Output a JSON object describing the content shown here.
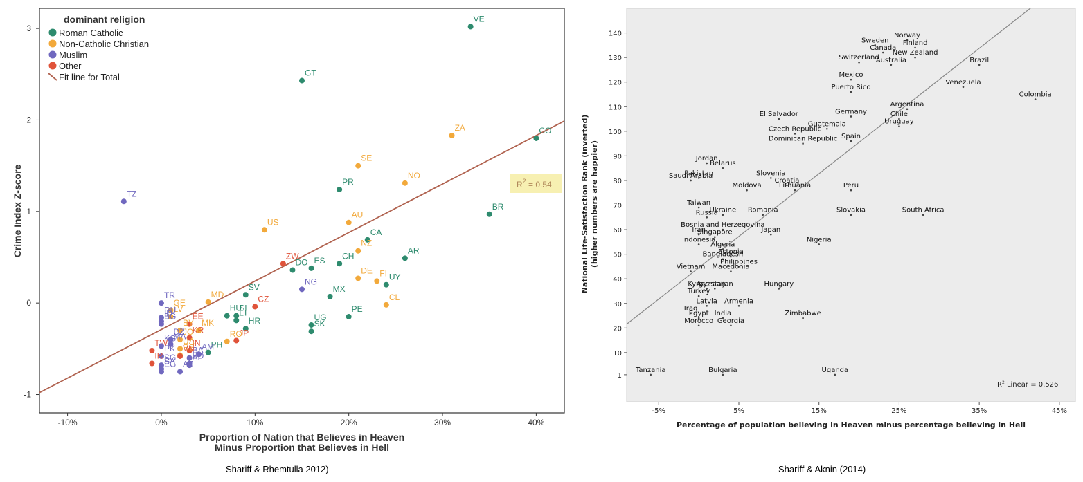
{
  "chart_data": [
    {
      "type": "scatter",
      "caption": "Shariff & Rhemtulla 2012)",
      "xlabel": [
        "Proportion of Nation that Believes in Heaven",
        "Minus Proportion that Believes in Hell"
      ],
      "ylabel": "Crime Index Z-score",
      "xlim": [
        -0.13,
        0.43
      ],
      "ylim": [
        -1.2,
        3.22
      ],
      "xticks": [
        -0.1,
        0,
        0.1,
        0.2,
        0.3,
        0.4
      ],
      "xtick_labels": [
        "-10%",
        "0%",
        "10%",
        "20%",
        "30%",
        "40%"
      ],
      "yticks": [
        -1,
        0,
        1,
        2,
        3
      ],
      "ytick_labels": [
        "-1",
        "0",
        "1",
        "2",
        "3"
      ],
      "legend": {
        "title": "dominant religion",
        "placement": "top-left",
        "entries": [
          {
            "label": "Roman Catholic",
            "color": "#2e8b6e",
            "marker": "dot"
          },
          {
            "label": "Non-Catholic Christian",
            "color": "#f2a93b",
            "marker": "dot"
          },
          {
            "label": "Muslim",
            "color": "#7068bf",
            "marker": "dot"
          },
          {
            "label": "Other",
            "color": "#e0533a",
            "marker": "dot"
          },
          {
            "label": "Fit line for Total",
            "color": "#b0624f",
            "marker": "line"
          }
        ]
      },
      "fit_line": {
        "intercept": -0.29,
        "slope": 5.3,
        "color": "#b0624f"
      },
      "r2_label": "R² = 0.54",
      "r2_sup": "2",
      "r2_value": "= 0.54",
      "r2_letter": "R",
      "points": [
        {
          "label": "VE",
          "x": 0.33,
          "y": 3.02,
          "group": "Roman Catholic"
        },
        {
          "label": "GT",
          "x": 0.15,
          "y": 2.43,
          "group": "Roman Catholic"
        },
        {
          "label": "CO",
          "x": 0.4,
          "y": 1.8,
          "group": "Roman Catholic"
        },
        {
          "label": "ZA",
          "x": 0.31,
          "y": 1.83,
          "group": "Non-Catholic Christian"
        },
        {
          "label": "SE",
          "x": 0.21,
          "y": 1.5,
          "group": "Non-Catholic Christian"
        },
        {
          "label": "NO",
          "x": 0.26,
          "y": 1.31,
          "group": "Non-Catholic Christian"
        },
        {
          "label": "PR",
          "x": 0.19,
          "y": 1.24,
          "group": "Roman Catholic"
        },
        {
          "label": "TZ",
          "x": -0.04,
          "y": 1.11,
          "group": "Muslim"
        },
        {
          "label": "BR",
          "x": 0.35,
          "y": 0.97,
          "group": "Roman Catholic"
        },
        {
          "label": "AU",
          "x": 0.2,
          "y": 0.88,
          "group": "Non-Catholic Christian"
        },
        {
          "label": "US",
          "x": 0.11,
          "y": 0.8,
          "group": "Non-Catholic Christian"
        },
        {
          "label": "CA",
          "x": 0.22,
          "y": 0.69,
          "group": "Roman Catholic"
        },
        {
          "label": "NZ",
          "x": 0.21,
          "y": 0.57,
          "group": "Non-Catholic Christian"
        },
        {
          "label": "AR",
          "x": 0.26,
          "y": 0.49,
          "group": "Roman Catholic"
        },
        {
          "label": "CH",
          "x": 0.19,
          "y": 0.43,
          "group": "Roman Catholic"
        },
        {
          "label": "ZW",
          "x": 0.13,
          "y": 0.43,
          "group": "Other"
        },
        {
          "label": "DO",
          "x": 0.14,
          "y": 0.36,
          "group": "Roman Catholic"
        },
        {
          "label": "ES",
          "x": 0.16,
          "y": 0.38,
          "group": "Roman Catholic"
        },
        {
          "label": "DE",
          "x": 0.21,
          "y": 0.27,
          "group": "Non-Catholic Christian"
        },
        {
          "label": "FI",
          "x": 0.23,
          "y": 0.24,
          "group": "Non-Catholic Christian"
        },
        {
          "label": "UY",
          "x": 0.24,
          "y": 0.2,
          "group": "Roman Catholic"
        },
        {
          "label": "NG",
          "x": 0.15,
          "y": 0.15,
          "group": "Muslim"
        },
        {
          "label": "MX",
          "x": 0.18,
          "y": 0.07,
          "group": "Roman Catholic"
        },
        {
          "label": "SV",
          "x": 0.09,
          "y": 0.09,
          "group": "Roman Catholic"
        },
        {
          "label": "CL",
          "x": 0.24,
          "y": -0.02,
          "group": "Non-Catholic Christian"
        },
        {
          "label": "CZ",
          "x": 0.1,
          "y": -0.04,
          "group": "Other"
        },
        {
          "label": "MD",
          "x": 0.05,
          "y": 0.01,
          "group": "Non-Catholic Christian"
        },
        {
          "label": "TR",
          "x": 0.0,
          "y": 0.0,
          "group": "Muslim"
        },
        {
          "label": "SI",
          "x": 0.08,
          "y": -0.14,
          "group": "Roman Catholic"
        },
        {
          "label": "LT",
          "x": 0.08,
          "y": -0.19,
          "group": "Roman Catholic"
        },
        {
          "label": "HR",
          "x": 0.09,
          "y": -0.28,
          "group": "Roman Catholic"
        },
        {
          "label": "HU",
          "x": 0.07,
          "y": -0.14,
          "group": "Roman Catholic"
        },
        {
          "label": "PE",
          "x": 0.2,
          "y": -0.15,
          "group": "Roman Catholic"
        },
        {
          "label": "UG",
          "x": 0.16,
          "y": -0.24,
          "group": "Roman Catholic"
        },
        {
          "label": "SK",
          "x": 0.16,
          "y": -0.31,
          "group": "Roman Catholic"
        },
        {
          "label": "GE",
          "x": 0.01,
          "y": -0.08,
          "group": "Non-Catholic Christian"
        },
        {
          "label": "LV",
          "x": 0.01,
          "y": -0.15,
          "group": "Non-Catholic Christian"
        },
        {
          "label": "RU",
          "x": 0.0,
          "y": -0.16,
          "group": "Muslim"
        },
        {
          "label": "BG",
          "x": 0.0,
          "y": -0.23,
          "group": "Muslim"
        },
        {
          "label": "EE",
          "x": 0.03,
          "y": -0.23,
          "group": "Other"
        },
        {
          "label": "MK",
          "x": 0.04,
          "y": -0.3,
          "group": "Non-Catholic Christian"
        },
        {
          "label": "BY",
          "x": 0.02,
          "y": -0.3,
          "group": "Non-Catholic Christian"
        },
        {
          "label": "KR",
          "x": 0.03,
          "y": -0.38,
          "group": "Other"
        },
        {
          "label": "DZ",
          "x": 0.01,
          "y": -0.4,
          "group": "Muslim"
        },
        {
          "label": "JO",
          "x": 0.02,
          "y": -0.4,
          "group": "Non-Catholic Christian"
        },
        {
          "label": "IN",
          "x": 0.03,
          "y": -0.52,
          "group": "Other"
        },
        {
          "label": "JP",
          "x": 0.08,
          "y": -0.41,
          "group": "Other"
        },
        {
          "label": "RO",
          "x": 0.07,
          "y": -0.42,
          "group": "Non-Catholic Christian"
        },
        {
          "label": "MA",
          "x": 0.01,
          "y": -0.45,
          "group": "Muslim"
        },
        {
          "label": "TW",
          "x": -0.01,
          "y": -0.52,
          "group": "Other"
        },
        {
          "label": "KG",
          "x": 0.0,
          "y": -0.47,
          "group": "Muslim"
        },
        {
          "label": "PH",
          "x": 0.05,
          "y": -0.54,
          "group": "Roman Catholic"
        },
        {
          "label": "RS",
          "x": 0.02,
          "y": -0.57,
          "group": "Non-Catholic Christian"
        },
        {
          "label": "AM",
          "x": 0.04,
          "y": -0.56,
          "group": "Muslim"
        },
        {
          "label": "BA",
          "x": 0.03,
          "y": -0.6,
          "group": "Muslim"
        },
        {
          "label": "VN",
          "x": 0.02,
          "y": -0.58,
          "group": "Other"
        },
        {
          "label": "PK",
          "x": 0.0,
          "y": -0.58,
          "group": "Muslim"
        },
        {
          "label": "IR",
          "x": -0.01,
          "y": -0.66,
          "group": "Other"
        },
        {
          "label": "SG",
          "x": 0.0,
          "y": -0.68,
          "group": "Muslim"
        },
        {
          "label": "AL",
          "x": 0.03,
          "y": -0.68,
          "group": "Muslim"
        },
        {
          "label": "SA",
          "x": 0.0,
          "y": -0.72,
          "group": "Muslim"
        },
        {
          "label": "ID",
          "x": 0.0,
          "y": -0.2,
          "group": "Muslim"
        },
        {
          "label": "UA",
          "x": 0.02,
          "y": -0.5,
          "group": "Non-Catholic Christian"
        },
        {
          "label": "BD",
          "x": 0.03,
          "y": -0.66,
          "group": "Muslim"
        },
        {
          "label": "EG",
          "x": 0.0,
          "y": -0.75,
          "group": "Muslim"
        },
        {
          "label": "AZ",
          "x": 0.02,
          "y": -0.75,
          "group": "Muslim"
        }
      ]
    },
    {
      "type": "scatter",
      "caption": "Shariff & Aknin (2014)",
      "xlabel": "Percentage of population believing in Heaven minus percentage believing in Hell",
      "ylabel": [
        "National Life-Satisfaction Rank (inverted)",
        "(higher numbers are happier)"
      ],
      "xlim": [
        -0.09,
        0.47
      ],
      "ylim": [
        -10,
        150
      ],
      "xticks": [
        -0.05,
        0.05,
        0.15,
        0.25,
        0.35,
        0.45
      ],
      "xtick_labels": [
        "-5%",
        "5%",
        "15%",
        "25%",
        "35%",
        "45%"
      ],
      "yticks": [
        1,
        10,
        20,
        30,
        40,
        50,
        60,
        70,
        80,
        90,
        100,
        110,
        120,
        130,
        140
      ],
      "ytick_labels": [
        "1",
        "10",
        "20",
        "30",
        "40",
        "50",
        "60",
        "70",
        "80",
        "90",
        "100",
        "110",
        "120",
        "130",
        "140"
      ],
      "fit_line": {
        "intercept": 44.5,
        "slope": 2.55,
        "color": "#888888"
      },
      "r2_label": "R² Linear = 0.526",
      "r2_letter": "R",
      "r2_sup": "2",
      "r2_value": "Linear = 0.526",
      "points": [
        {
          "label": "Sweden",
          "x": 0.22,
          "y": 135
        },
        {
          "label": "Norway",
          "x": 0.26,
          "y": 137
        },
        {
          "label": "Finland",
          "x": 0.27,
          "y": 134
        },
        {
          "label": "Canada",
          "x": 0.23,
          "y": 132
        },
        {
          "label": "New Zealand",
          "x": 0.27,
          "y": 130
        },
        {
          "label": "Switzerland",
          "x": 0.2,
          "y": 128
        },
        {
          "label": "Australia",
          "x": 0.24,
          "y": 127
        },
        {
          "label": "Brazil",
          "x": 0.35,
          "y": 127
        },
        {
          "label": "Mexico",
          "x": 0.19,
          "y": 121
        },
        {
          "label": "Puerto Rico",
          "x": 0.19,
          "y": 116
        },
        {
          "label": "Venezuela",
          "x": 0.33,
          "y": 118
        },
        {
          "label": "Colombia",
          "x": 0.42,
          "y": 113
        },
        {
          "label": "Argentina",
          "x": 0.26,
          "y": 109
        },
        {
          "label": "El Salvador",
          "x": 0.1,
          "y": 105
        },
        {
          "label": "Germany",
          "x": 0.19,
          "y": 106
        },
        {
          "label": "Chile",
          "x": 0.25,
          "y": 105
        },
        {
          "label": "Guatemala",
          "x": 0.16,
          "y": 101
        },
        {
          "label": "Uruguay",
          "x": 0.25,
          "y": 102
        },
        {
          "label": "Czech Republic",
          "x": 0.12,
          "y": 99
        },
        {
          "label": "Spain",
          "x": 0.19,
          "y": 96
        },
        {
          "label": "Dominican Republic",
          "x": 0.13,
          "y": 95
        },
        {
          "label": "Jordan",
          "x": 0.01,
          "y": 87
        },
        {
          "label": "Pakistan",
          "x": 0.0,
          "y": 81
        },
        {
          "label": "Belarus",
          "x": 0.03,
          "y": 85
        },
        {
          "label": "Slovenia",
          "x": 0.09,
          "y": 81
        },
        {
          "label": "Saudi Arabia",
          "x": -0.01,
          "y": 80
        },
        {
          "label": "Moldova",
          "x": 0.06,
          "y": 76
        },
        {
          "label": "Croatia",
          "x": 0.11,
          "y": 78
        },
        {
          "label": "Lithuania",
          "x": 0.12,
          "y": 76
        },
        {
          "label": "Peru",
          "x": 0.19,
          "y": 76
        },
        {
          "label": "Taiwan",
          "x": 0.0,
          "y": 69
        },
        {
          "label": "Russia",
          "x": 0.01,
          "y": 65
        },
        {
          "label": "Ukraine",
          "x": 0.03,
          "y": 66
        },
        {
          "label": "Romania",
          "x": 0.08,
          "y": 66
        },
        {
          "label": "Slovakia",
          "x": 0.19,
          "y": 66
        },
        {
          "label": "South Africa",
          "x": 0.28,
          "y": 66
        },
        {
          "label": "Bosnia and Herzegovina",
          "x": 0.03,
          "y": 60
        },
        {
          "label": "Japan",
          "x": 0.09,
          "y": 58
        },
        {
          "label": "Iran",
          "x": 0.0,
          "y": 58
        },
        {
          "label": "Singapore",
          "x": 0.02,
          "y": 57
        },
        {
          "label": "Indonesia",
          "x": 0.0,
          "y": 54
        },
        {
          "label": "Nigeria",
          "x": 0.15,
          "y": 54
        },
        {
          "label": "Algeria",
          "x": 0.03,
          "y": 52
        },
        {
          "label": "Estonia",
          "x": 0.04,
          "y": 49
        },
        {
          "label": "Bangladesh",
          "x": 0.03,
          "y": 48
        },
        {
          "label": "Vietnam",
          "x": -0.01,
          "y": 43
        },
        {
          "label": "Philippines",
          "x": 0.05,
          "y": 45
        },
        {
          "label": "Macedonia",
          "x": 0.04,
          "y": 43
        },
        {
          "label": "Kyrgyzstan",
          "x": 0.01,
          "y": 36
        },
        {
          "label": "Azerbaijan",
          "x": 0.02,
          "y": 36
        },
        {
          "label": "Hungary",
          "x": 0.1,
          "y": 36
        },
        {
          "label": "Turkey",
          "x": 0.0,
          "y": 33
        },
        {
          "label": "Latvia",
          "x": 0.01,
          "y": 29
        },
        {
          "label": "Armenia",
          "x": 0.05,
          "y": 29
        },
        {
          "label": "Iraq",
          "x": -0.01,
          "y": 26
        },
        {
          "label": "Egypt",
          "x": 0.0,
          "y": 24
        },
        {
          "label": "India",
          "x": 0.03,
          "y": 24
        },
        {
          "label": "Zimbabwe",
          "x": 0.13,
          "y": 24
        },
        {
          "label": "Morocco",
          "x": 0.0,
          "y": 21
        },
        {
          "label": "Georgia",
          "x": 0.04,
          "y": 21
        },
        {
          "label": "Tanzania",
          "x": -0.06,
          "y": 1
        },
        {
          "label": "Bulgaria",
          "x": 0.03,
          "y": 1
        },
        {
          "label": "Uganda",
          "x": 0.17,
          "y": 1
        }
      ]
    }
  ]
}
